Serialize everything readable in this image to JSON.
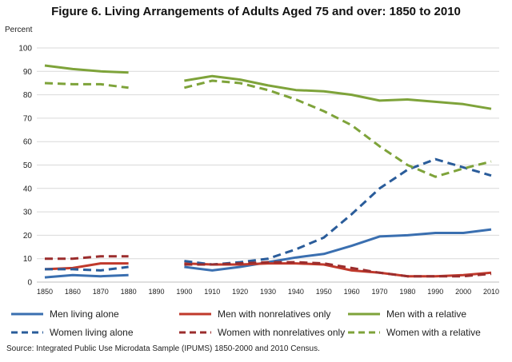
{
  "chart_data": {
    "type": "line",
    "title": "Figure 6. Living Arrangements of Adults Aged 75 and over: 1850 to 2010",
    "ylabel": "Percent",
    "xlabel": "",
    "ylim": [
      0,
      100
    ],
    "yticks": [
      0,
      10,
      20,
      30,
      40,
      50,
      60,
      70,
      80,
      90,
      100
    ],
    "x": [
      1850,
      1860,
      1870,
      1880,
      1890,
      1900,
      1910,
      1920,
      1930,
      1940,
      1950,
      1960,
      1970,
      1980,
      1990,
      2000,
      2010
    ],
    "grid": "horizontal",
    "legend_position": "bottom",
    "series": [
      {
        "name": "Men living alone",
        "color": "#3a6fb0",
        "dash": "solid",
        "values": [
          2,
          3,
          2.5,
          3,
          null,
          6.5,
          5,
          6.5,
          8.5,
          10.5,
          12,
          15.5,
          19.5,
          20,
          21,
          21,
          22.5
        ]
      },
      {
        "name": "Men with nonrelatives only",
        "color": "#c0392b",
        "dash": "solid",
        "values": [
          5.5,
          6,
          8,
          8,
          null,
          8,
          7.5,
          7.5,
          8,
          8,
          7.5,
          5,
          4,
          2.5,
          2.5,
          3,
          4
        ]
      },
      {
        "name": "Men with a relative",
        "color": "#7ea33a",
        "dash": "solid",
        "values": [
          92.5,
          91,
          90,
          89.5,
          null,
          86,
          88,
          86.5,
          84,
          82,
          81.5,
          80,
          77.5,
          78,
          77,
          76,
          74
        ]
      },
      {
        "name": "Women living alone",
        "color": "#2a5c9a",
        "dash": "dashed",
        "values": [
          5.5,
          5.5,
          5,
          6.5,
          null,
          9,
          7.5,
          8.5,
          10,
          14,
          19,
          29,
          40,
          48,
          52.5,
          49,
          45.5
        ]
      },
      {
        "name": "Women with nonrelatives only",
        "color": "#9b2d2d",
        "dash": "dashed",
        "values": [
          10,
          10,
          11,
          11,
          null,
          7.5,
          7.5,
          8,
          8.5,
          8.5,
          8,
          6,
          4,
          2.5,
          2.5,
          2.5,
          3.5
        ]
      },
      {
        "name": "Women with a relative",
        "color": "#7ea33a",
        "dash": "dashed",
        "values": [
          85,
          84.5,
          84.5,
          83,
          null,
          83,
          86,
          85,
          82,
          78,
          73,
          67,
          58,
          50,
          45,
          48.5,
          51.5
        ]
      }
    ]
  },
  "source": "Source: Integrated Public Use Microdata Sample (IPUMS) 1850-2000 and 2010 Census."
}
